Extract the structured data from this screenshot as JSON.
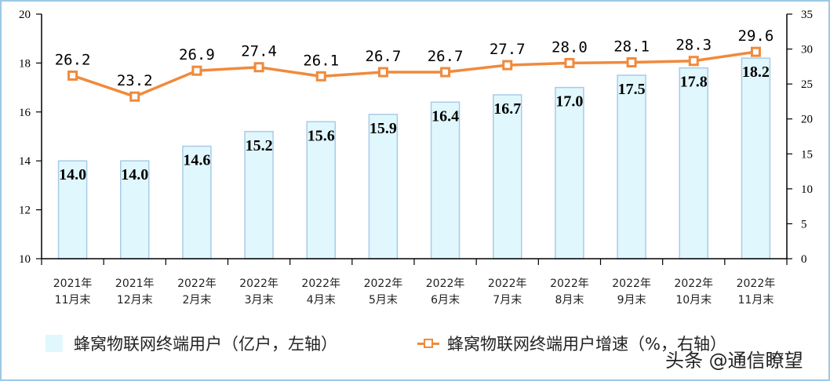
{
  "chart_data": {
    "type": "bar+line",
    "title": "",
    "categories": [
      "2021年\n11月末",
      "2021年\n12月末",
      "2022年\n2月末",
      "2022年\n3月末",
      "2022年\n4月末",
      "2022年\n5月末",
      "2022年\n6月末",
      "2022年\n7月末",
      "2022年\n8月末",
      "2022年\n9月末",
      "2022年\n10月末",
      "2022年\n11月末"
    ],
    "category_lines": [
      [
        "2021年",
        "11月末"
      ],
      [
        "2021年",
        "12月末"
      ],
      [
        "2022年",
        "2月末"
      ],
      [
        "2022年",
        "3月末"
      ],
      [
        "2022年",
        "4月末"
      ],
      [
        "2022年",
        "5月末"
      ],
      [
        "2022年",
        "6月末"
      ],
      [
        "2022年",
        "7月末"
      ],
      [
        "2022年",
        "8月末"
      ],
      [
        "2022年",
        "9月末"
      ],
      [
        "2022年",
        "10月末"
      ],
      [
        "2022年",
        "11月末"
      ]
    ],
    "series": [
      {
        "name": "蜂窝物联网终端用户（亿户，左轴）",
        "type": "bar",
        "axis": "left",
        "values": [
          14.0,
          14.0,
          14.6,
          15.2,
          15.6,
          15.9,
          16.4,
          16.7,
          17.0,
          17.5,
          17.8,
          18.2
        ],
        "labels": [
          "14.0",
          "14.0",
          "14.6",
          "15.2",
          "15.6",
          "15.9",
          "16.4",
          "16.7",
          "17.0",
          "17.5",
          "17.8",
          "18.2"
        ],
        "color": "#e0f7fd",
        "border": "#a9cbe8"
      },
      {
        "name": "蜂窝物联网终端用户增速（%，右轴）",
        "type": "line",
        "axis": "right",
        "values": [
          26.2,
          23.2,
          26.9,
          27.4,
          26.1,
          26.7,
          26.7,
          27.7,
          28.0,
          28.1,
          28.3,
          29.6
        ],
        "labels": [
          "26.2",
          "23.2",
          "26.9",
          "27.4",
          "26.1",
          "26.7",
          "26.7",
          "27.7",
          "28.0",
          "28.1",
          "28.3",
          "29.6"
        ],
        "color": "#f08a3c"
      }
    ],
    "y_left": {
      "range": [
        10,
        20
      ],
      "ticks": [
        "10",
        "12",
        "14",
        "16",
        "18",
        "20"
      ]
    },
    "y_right": {
      "range": [
        0,
        35
      ],
      "ticks": [
        "0",
        "5",
        "10",
        "15",
        "20",
        "25",
        "30",
        "35"
      ]
    },
    "xlabel": "",
    "ylabel": "",
    "grid": false,
    "legend_position": "bottom"
  },
  "legend": {
    "bar_label": "蜂窝物联网终端用户（亿户，左轴）",
    "line_label": "蜂窝物联网终端用户增速（%，右轴）"
  },
  "watermark": "头条 @通信瞭望"
}
